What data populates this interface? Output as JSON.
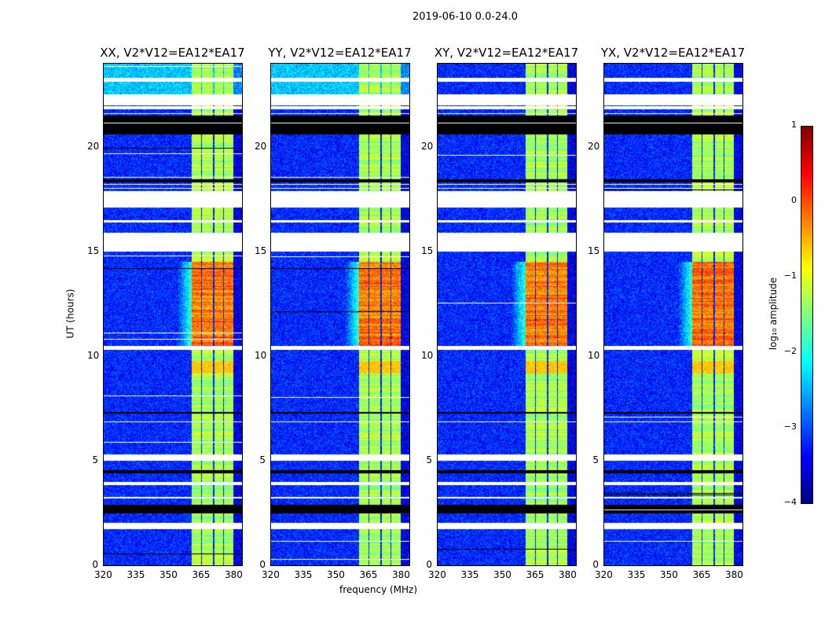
{
  "chart_data": {
    "type": "heatmap",
    "title": "2019-06-10 0.0-24.0",
    "xlabel": "frequency (MHz)",
    "ylabel": "UT (hours)",
    "xlim": [
      320,
      384
    ],
    "ylim": [
      0,
      24
    ],
    "xticks": [
      "320",
      "335",
      "350",
      "365",
      "380"
    ],
    "xtick_values": [
      320,
      335,
      350,
      365,
      380
    ],
    "yticks": [
      "0",
      "5",
      "10",
      "15",
      "20"
    ],
    "ytick_values": [
      0,
      5,
      10,
      15,
      20
    ],
    "panels": [
      {
        "title": "XX, V2*V12=EA12*EA17",
        "seed": 1,
        "top_bright": true
      },
      {
        "title": "YY, V2*V12=EA12*EA17",
        "seed": 2,
        "top_bright": true
      },
      {
        "title": "XY, V2*V12=EA12*EA17",
        "seed": 3,
        "top_bright": false
      },
      {
        "title": "YX, V2*V12=EA12*EA17",
        "seed": 4,
        "top_bright": false
      }
    ],
    "colorbar": {
      "label": "log₁₀ amplitude",
      "range": [
        -4,
        1
      ],
      "ticks": [
        "1",
        "0",
        "−1",
        "−2",
        "−3",
        "−4"
      ],
      "tick_values": [
        1,
        0,
        -1,
        -2,
        -3,
        -4
      ],
      "colormap": "jet"
    },
    "background_level": -3.2,
    "band_level": -1.3,
    "subbands_mhz": [
      [
        360.5,
        365
      ],
      [
        365.5,
        370.5
      ],
      [
        371,
        375
      ],
      [
        375.5,
        380
      ]
    ],
    "strong_hours": [
      10.5,
      14.5
    ],
    "strong_level": -0.2,
    "flagged_hours": [
      [
        23.1,
        23.3
      ],
      [
        22.0,
        22.5
      ],
      [
        21.8,
        21.95
      ],
      [
        17.1,
        17.9
      ],
      [
        16.4,
        16.5
      ],
      [
        15.0,
        15.9
      ],
      [
        10.3,
        10.5
      ],
      [
        5.0,
        5.3
      ],
      [
        3.85,
        4.0
      ],
      [
        3.2,
        3.3
      ],
      [
        1.75,
        2.05
      ]
    ],
    "zero_hours": [
      [
        20.6,
        21.5
      ],
      [
        18.3,
        18.45
      ],
      [
        7.25,
        7.35
      ],
      [
        4.4,
        4.55
      ],
      [
        2.5,
        2.9
      ]
    ]
  }
}
